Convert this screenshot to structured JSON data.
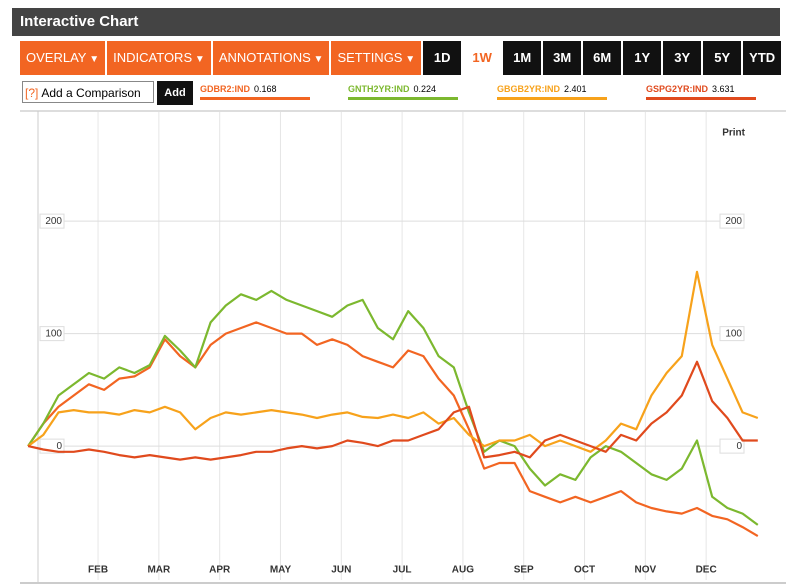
{
  "header": {
    "title": "Interactive Chart"
  },
  "toolbar": {
    "menus": [
      "OVERLAY",
      "INDICATORS",
      "ANNOTATIONS",
      "SETTINGS"
    ],
    "ranges": [
      "1D",
      "1W",
      "1M",
      "3M",
      "6M",
      "1Y",
      "3Y",
      "5Y",
      "YTD"
    ]
  },
  "comparison": {
    "help": "[?]",
    "placeholder": "Add a Comparison",
    "button": "Add"
  },
  "print": "Print",
  "chart_data": {
    "type": "line",
    "x": [
      0.85,
      1.1,
      1.35,
      1.6,
      1.85,
      2.1,
      2.35,
      2.6,
      2.85,
      3.1,
      3.35,
      3.6,
      3.85,
      4.1,
      4.35,
      4.6,
      4.85,
      5.1,
      5.35,
      5.6,
      5.85,
      6.1,
      6.35,
      6.6,
      6.85,
      7.1,
      7.35,
      7.6,
      7.85,
      8.1,
      8.35,
      8.6,
      8.85,
      9.1,
      9.35,
      9.6,
      9.85,
      10.1,
      10.35,
      10.6,
      10.85,
      11.1,
      11.35,
      11.6,
      11.85,
      12.1,
      12.35,
      12.6,
      12.85
    ],
    "xlim": [
      0.7,
      13.05
    ],
    "xticks": [
      {
        "value": 2,
        "label": "FEB"
      },
      {
        "value": 3,
        "label": "MAR"
      },
      {
        "value": 4,
        "label": "APR"
      },
      {
        "value": 5,
        "label": "MAY"
      },
      {
        "value": 6,
        "label": "JUN"
      },
      {
        "value": 7,
        "label": "JUL"
      },
      {
        "value": 8,
        "label": "AUG"
      },
      {
        "value": 9,
        "label": "SEP"
      },
      {
        "value": 10,
        "label": "OCT"
      },
      {
        "value": 11,
        "label": "NOV"
      },
      {
        "value": 12,
        "label": "DEC"
      }
    ],
    "ylim": [
      -119,
      297
    ],
    "yticks": [
      0,
      100,
      200
    ],
    "grid": true,
    "series": [
      {
        "name": "GDBR2:IND",
        "last": 0.168,
        "color": "#f26522",
        "values": [
          0,
          20,
          35,
          45,
          55,
          50,
          60,
          62,
          70,
          95,
          80,
          70,
          90,
          100,
          105,
          110,
          105,
          100,
          100,
          90,
          95,
          90,
          80,
          75,
          70,
          85,
          80,
          60,
          45,
          15,
          -20,
          -15,
          -15,
          -40,
          -45,
          -50,
          -45,
          -50,
          -45,
          -40,
          -50,
          -55,
          -58,
          -60,
          -55,
          -62,
          -65,
          -72,
          -80
        ]
      },
      {
        "name": "GNTH2YR:IND",
        "last": 0.224,
        "color": "#7cb82f",
        "values": [
          0,
          20,
          45,
          55,
          65,
          60,
          70,
          65,
          72,
          98,
          85,
          70,
          110,
          125,
          135,
          130,
          138,
          130,
          125,
          120,
          115,
          125,
          130,
          105,
          95,
          120,
          105,
          80,
          70,
          30,
          -5,
          5,
          0,
          -20,
          -35,
          -25,
          -30,
          -10,
          0,
          -5,
          -15,
          -25,
          -30,
          -20,
          5,
          -45,
          -55,
          -60,
          -70
        ]
      },
      {
        "name": "GBGB2YR:IND",
        "last": 2.401,
        "color": "#f7a21b",
        "values": [
          0,
          10,
          30,
          32,
          30,
          30,
          28,
          32,
          30,
          35,
          30,
          15,
          25,
          30,
          28,
          30,
          32,
          30,
          28,
          25,
          28,
          30,
          26,
          25,
          28,
          25,
          30,
          20,
          25,
          10,
          0,
          5,
          5,
          10,
          0,
          5,
          0,
          -5,
          5,
          20,
          15,
          45,
          65,
          80,
          155,
          90,
          60,
          30,
          25
        ]
      },
      {
        "name": "GSPG2YR:IND",
        "last": 3.631,
        "color": "#e04a1d",
        "values": [
          0,
          -3,
          -5,
          -5,
          -3,
          -5,
          -8,
          -10,
          -8,
          -10,
          -12,
          -10,
          -12,
          -10,
          -8,
          -5,
          -5,
          -2,
          0,
          -2,
          0,
          5,
          3,
          0,
          5,
          5,
          10,
          15,
          30,
          35,
          -10,
          -8,
          -5,
          -10,
          5,
          10,
          5,
          0,
          -5,
          10,
          5,
          20,
          30,
          45,
          75,
          40,
          25,
          5,
          5
        ]
      }
    ]
  }
}
